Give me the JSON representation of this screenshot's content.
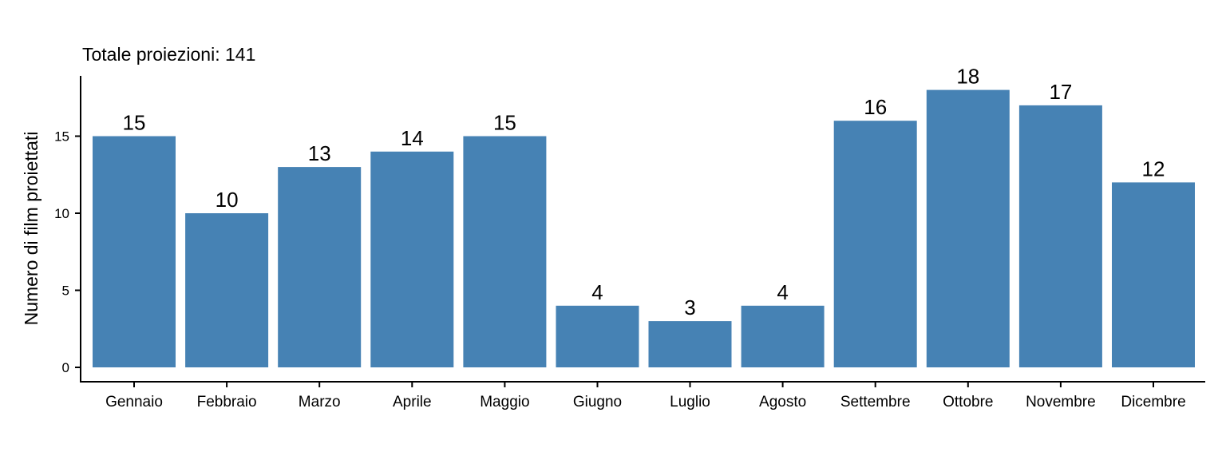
{
  "chart_data": {
    "type": "bar",
    "title": "Totale proiezioni: 141",
    "xlabel": "",
    "ylabel": "Numero di film proiettati",
    "categories": [
      "Gennaio",
      "Febbraio",
      "Marzo",
      "Aprile",
      "Maggio",
      "Giugno",
      "Luglio",
      "Agosto",
      "Settembre",
      "Ottobre",
      "Novembre",
      "Dicembre"
    ],
    "values": [
      15,
      10,
      13,
      14,
      15,
      4,
      3,
      4,
      16,
      18,
      17,
      12
    ],
    "data_labels": [
      "15",
      "10",
      "13",
      "14",
      "15",
      "4",
      "3",
      "4",
      "16",
      "18",
      "17",
      "12"
    ],
    "yticks": [
      0,
      5,
      10,
      15
    ],
    "ytick_labels": [
      "0",
      "5",
      "10",
      "15"
    ],
    "ylim": [
      0,
      18.9
    ],
    "grid": false,
    "legend": "none",
    "bar_color": "#4682b4"
  }
}
